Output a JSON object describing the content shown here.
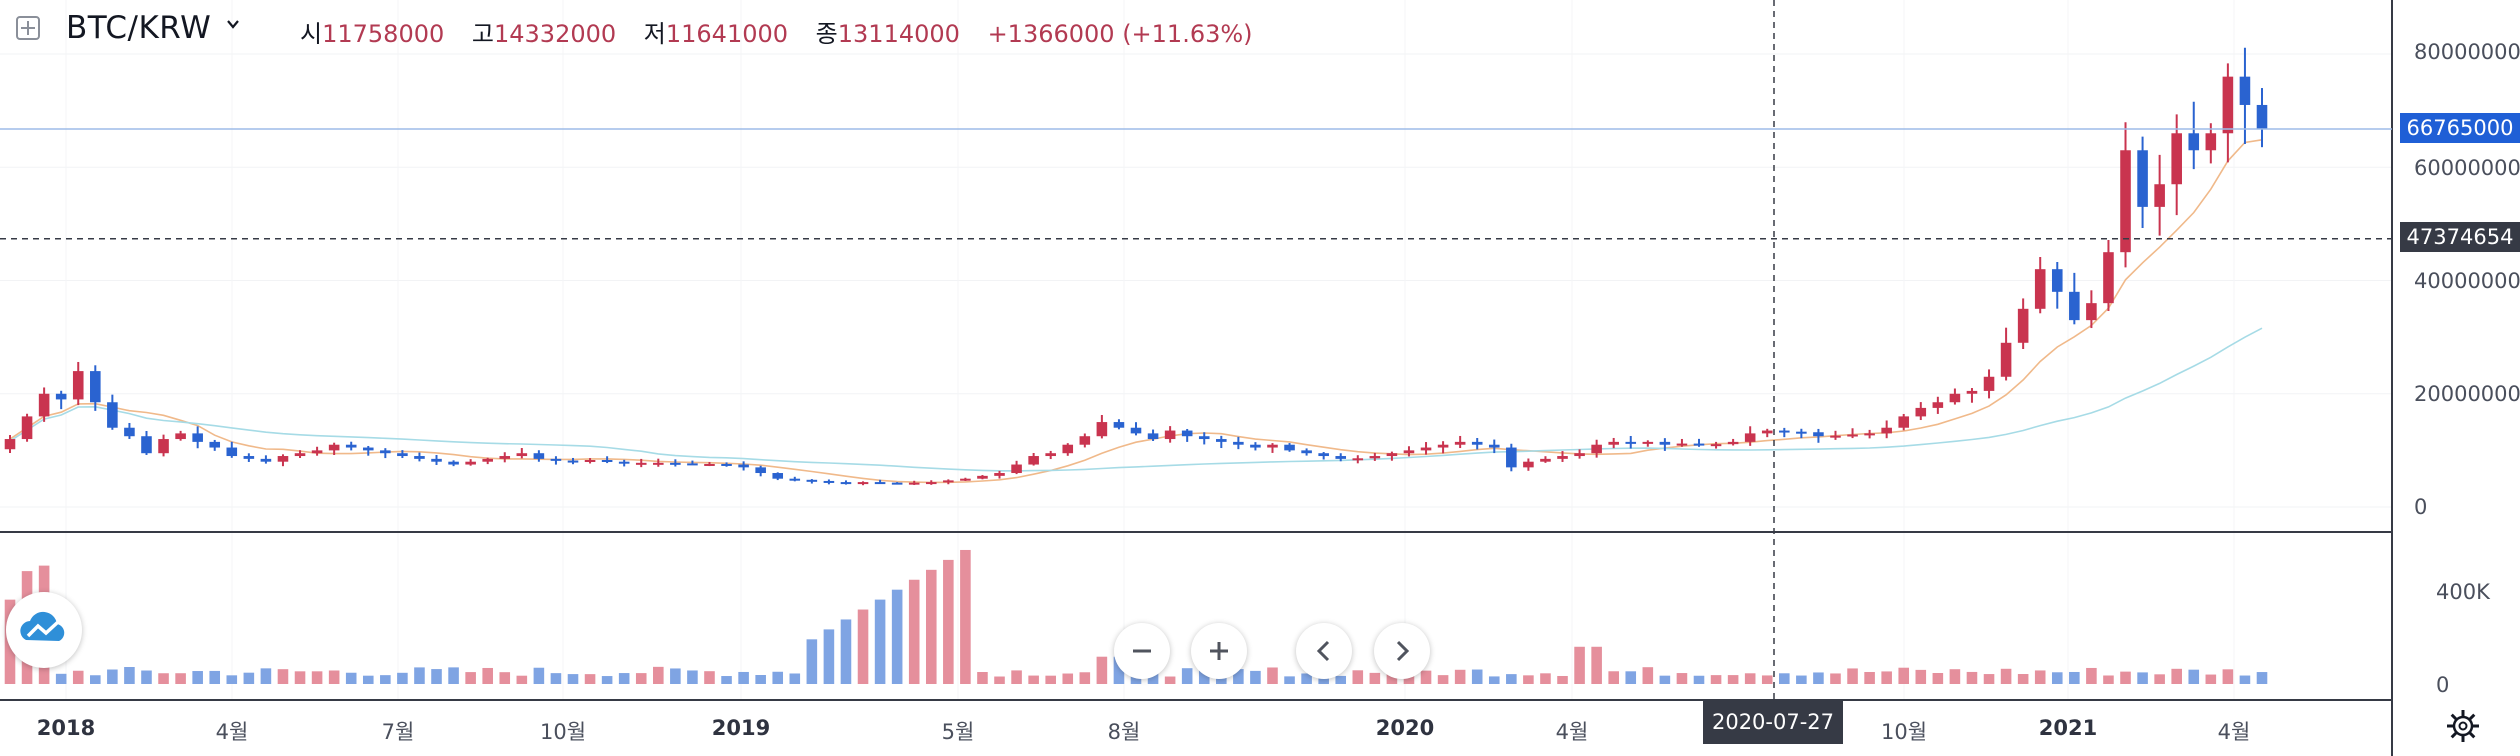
{
  "header": {
    "symbol": "BTC/KRW",
    "open_label": "시",
    "open": "11758000",
    "high_label": "고",
    "high": "14332000",
    "low_label": "저",
    "low": "11641000",
    "close_label": "종",
    "close": "13114000",
    "change": "+1366000 (+11.63%)"
  },
  "price_axis": {
    "ticks": [
      "80000000",
      "60000000",
      "40000000",
      "20000000",
      "0"
    ],
    "last_price_tag": "66765000",
    "crosshair_price_tag": "47374654"
  },
  "volume_axis": {
    "ticks": [
      "400K",
      "0"
    ]
  },
  "time_axis": {
    "labels": [
      {
        "text": "2018",
        "year": true
      },
      {
        "text": "4월",
        "year": false
      },
      {
        "text": "7월",
        "year": false
      },
      {
        "text": "10월",
        "year": false
      },
      {
        "text": "2019",
        "year": true
      },
      {
        "text": "5월",
        "year": false
      },
      {
        "text": "8월",
        "year": false
      },
      {
        "text": "2020",
        "year": true
      },
      {
        "text": "4월",
        "year": false
      },
      {
        "text": "10월",
        "year": false
      },
      {
        "text": "2021",
        "year": true
      },
      {
        "text": "4월",
        "year": false
      }
    ],
    "crosshair_date": "2020-07-27"
  },
  "controls": {
    "zoom_out_icon": "minus-icon",
    "zoom_in_icon": "plus-icon",
    "scroll_left_icon": "chevron-left-icon",
    "scroll_right_icon": "chevron-right-icon",
    "settings_icon": "gear-icon"
  },
  "colors": {
    "up": "#c9344f",
    "down": "#2a63d0",
    "up_volume": "#e58f9c",
    "down_volume": "#7fa4e3",
    "ma_short": "#f0b98a",
    "ma_long": "#a6dbe6",
    "last_price": "#1f5fd6",
    "crosshair": "#363a45"
  },
  "chart_data": {
    "type": "candlestick",
    "interval": "weekly",
    "symbol": "BTC/KRW",
    "y_range": [
      0,
      85000000
    ],
    "volume_range": [
      0,
      560000
    ],
    "period": "2017-12 to 2021-04",
    "series_close": [
      12000000,
      16000000,
      20000000,
      19000000,
      24000000,
      18500000,
      14000000,
      12500000,
      9500000,
      12000000,
      13000000,
      11500000,
      10500000,
      9000000,
      8500000,
      8000000,
      9000000,
      9500000,
      10000000,
      11000000,
      10500000,
      10000000,
      9500000,
      9000000,
      8500000,
      8000000,
      7500000,
      8000000,
      8500000,
      9000000,
      9500000,
      8500000,
      8200000,
      8000000,
      8300000,
      8000000,
      7800000,
      7800000,
      7800000,
      7700000,
      7600000,
      7600000,
      7500000,
      7000000,
      6000000,
      5000000,
      4800000,
      4600000,
      4400000,
      4200000,
      4400000,
      4300000,
      4200000,
      4300000,
      4400000,
      4700000,
      5000000,
      5500000,
      6000000,
      7500000,
      9000000,
      9500000,
      11000000,
      12500000,
      15000000,
      14000000,
      13000000,
      12000000,
      13500000,
      12500000,
      12000000,
      11500000,
      11000000,
      10500000,
      11000000,
      10000000,
      9500000,
      9000000,
      8500000,
      8600000,
      9000000,
      9500000,
      10000000,
      10500000,
      11000000,
      11500000,
      11000000,
      10500000,
      7000000,
      8000000,
      8500000,
      9000000,
      9500000,
      11000000,
      11500000,
      11200000,
      11500000,
      11000000,
      11200000,
      11000000,
      11100000,
      11500000,
      13000000,
      13500000,
      13300000,
      13200000,
      12500000,
      12600000,
      12800000,
      13000000,
      14000000,
      16000000,
      17500000,
      18500000,
      20000000,
      20500000,
      23000000,
      29000000,
      35000000,
      42000000,
      38000000,
      33000000,
      36000000,
      45000000,
      63000000,
      53000000,
      57000000,
      66000000,
      63000000,
      66000000,
      76000000,
      71000000,
      66765000
    ],
    "last_close": 66765000,
    "crosshair": {
      "date": "2020-07-27",
      "price": 47374654
    }
  }
}
